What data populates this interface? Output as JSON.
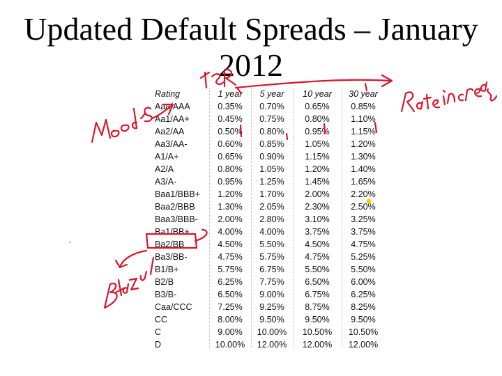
{
  "slide": {
    "title_line1": "Updated Default Spreads – January",
    "title_line2": "2012"
  },
  "table": {
    "headers": [
      "Rating",
      "1 year",
      "5 year",
      "10 year",
      "30 year"
    ],
    "rows": [
      [
        "Aaa/AAA",
        "0.35%",
        "0.70%",
        "0.65%",
        "0.85%"
      ],
      [
        "Aa1/AA+",
        "0.45%",
        "0.75%",
        "0.80%",
        "1.10%"
      ],
      [
        "Aa2/AA",
        "0.50%",
        "0.80%",
        "0.95%",
        "1.15%"
      ],
      [
        "Aa3/AA-",
        "0.60%",
        "0.85%",
        "1.05%",
        "1.20%"
      ],
      [
        "A1/A+",
        "0.65%",
        "0.90%",
        "1.15%",
        "1.30%"
      ],
      [
        "A2/A",
        "0.80%",
        "1.05%",
        "1.20%",
        "1.40%"
      ],
      [
        "A3/A-",
        "0.95%",
        "1.25%",
        "1.45%",
        "1.65%"
      ],
      [
        "Baa1/BBB+",
        "1.20%",
        "1.70%",
        "2.00%",
        "2.20%"
      ],
      [
        "Baa2/BBB",
        "1.30%",
        "2.05%",
        "2.30%",
        "2.50%"
      ],
      [
        "Baa3/BBB-",
        "2.00%",
        "2.80%",
        "3.10%",
        "3.25%"
      ],
      [
        "Ba1/BB+",
        "4.00%",
        "4.00%",
        "3.75%",
        "3.75%"
      ],
      [
        "Ba2/BB",
        "4.50%",
        "5.50%",
        "4.50%",
        "4.75%"
      ],
      [
        "Ba3/BB-",
        "4.75%",
        "5.75%",
        "4.75%",
        "5.25%"
      ],
      [
        "B1/B+",
        "5.75%",
        "6.75%",
        "5.50%",
        "5.50%"
      ],
      [
        "B2/B",
        "6.25%",
        "7.75%",
        "6.50%",
        "6.00%"
      ],
      [
        "B3/B-",
        "6.50%",
        "9.00%",
        "6.75%",
        "6.25%"
      ],
      [
        "Caa/CCC",
        "7.25%",
        "9.25%",
        "8.75%",
        "8.25%"
      ],
      [
        "CC",
        "8.00%",
        "9.50%",
        "9.50%",
        "9.50%"
      ],
      [
        "C",
        "9.00%",
        "10.00%",
        "10.50%",
        "10.50%"
      ],
      [
        "D",
        "10.00%",
        "12.00%",
        "12.00%",
        "12.00%"
      ]
    ]
  },
  "annotations": {
    "moodys": "Moodys",
    "tsr": "TSR",
    "rate_increase": "Rate increase",
    "bbazul": "Bbazul",
    "ink_color": "#d8152b",
    "highlight_color": "#f0d000"
  }
}
